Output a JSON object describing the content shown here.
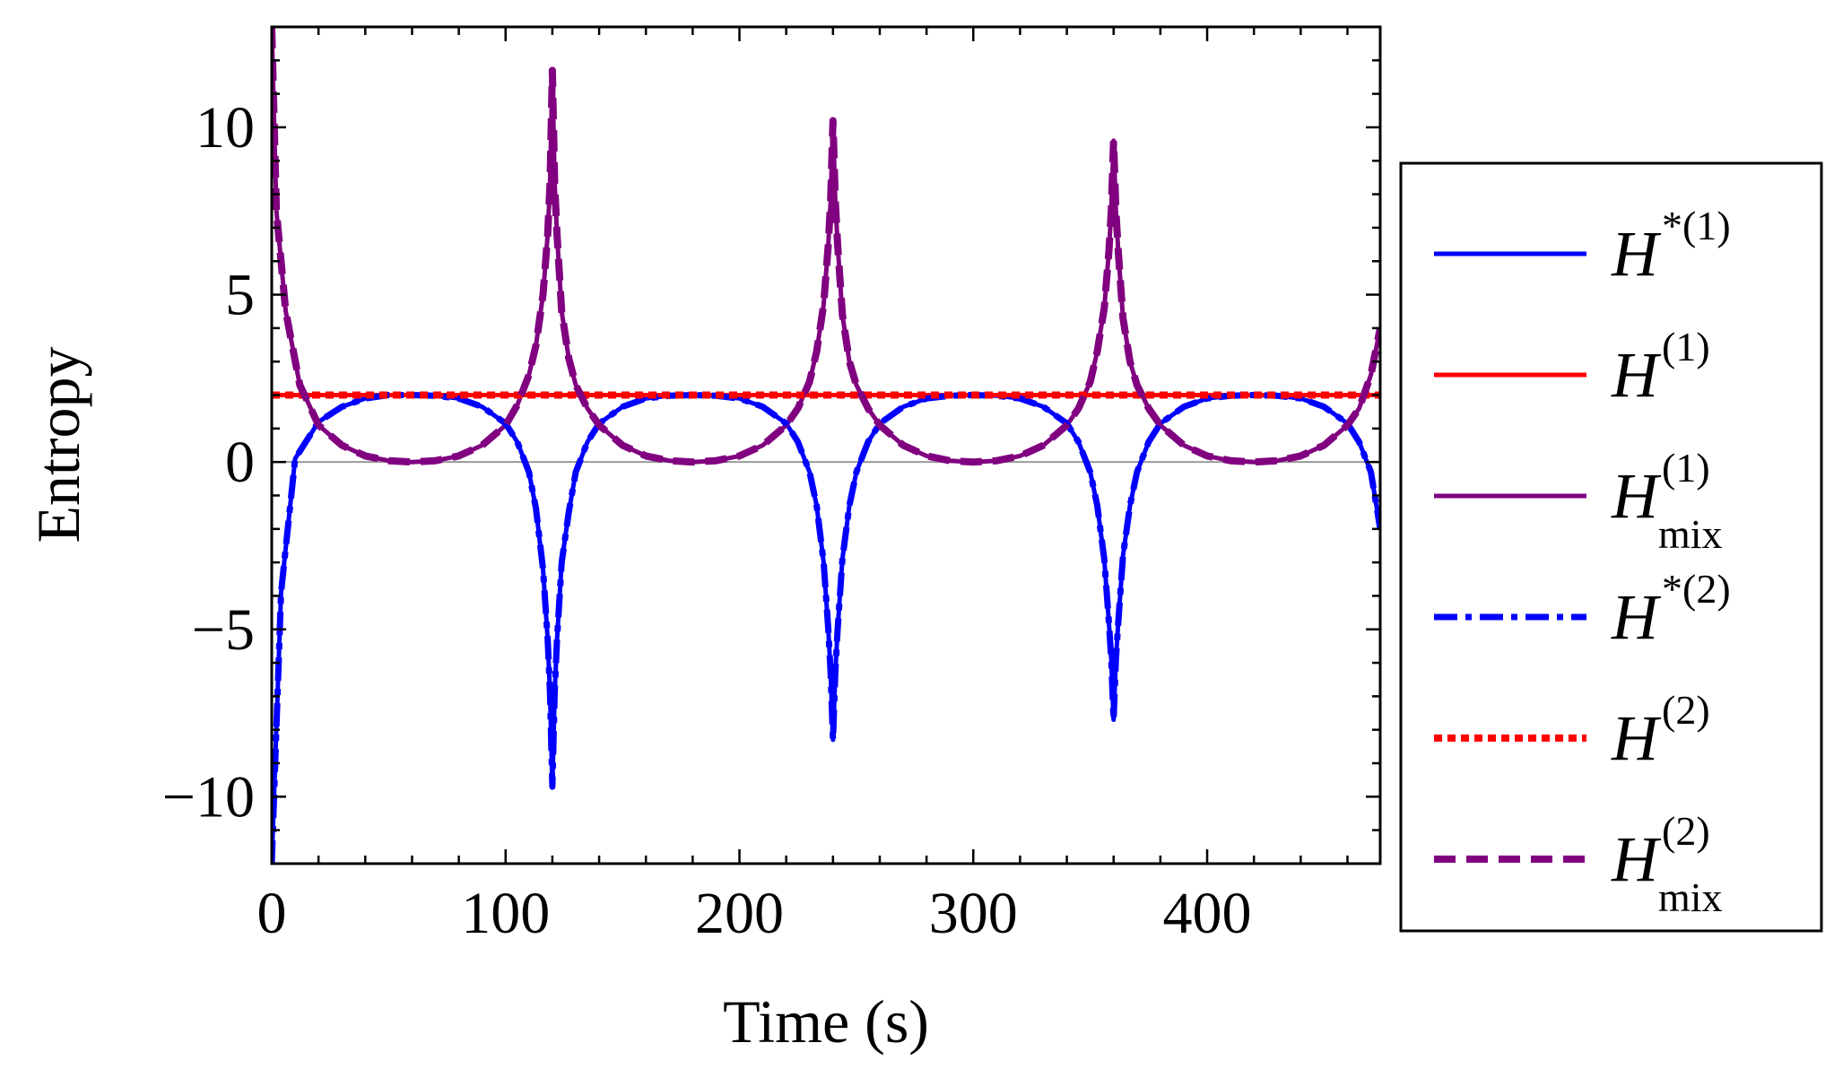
{
  "chart_data": {
    "type": "line",
    "title": "",
    "xlabel": "Time (s)",
    "ylabel": "Entropy",
    "xlim": [
      0,
      474
    ],
    "ylim": [
      -12,
      13
    ],
    "xticks": [
      0,
      100,
      200,
      300,
      400
    ],
    "yticks": [
      -10,
      -5,
      0,
      5,
      10
    ],
    "xtick_labels": [
      "0",
      "100",
      "200",
      "300",
      "400"
    ],
    "ytick_labels": [
      "−10",
      "−5",
      "0",
      "5",
      "10"
    ],
    "zero_line": true,
    "grid": false,
    "legend_position": "right",
    "series": [
      {
        "name": "H*(1)",
        "symbol": "H",
        "sup": "*(1)",
        "sub": "",
        "color": "#0000ff",
        "style": "solid",
        "x": [
          0,
          4,
          10,
          20,
          30,
          40,
          50,
          60,
          70,
          80,
          90,
          100,
          105,
          110,
          113,
          116,
          118,
          119,
          120,
          121,
          122,
          124,
          127,
          130,
          135,
          140,
          150,
          160,
          170,
          180,
          190,
          200,
          210,
          220,
          225,
          230,
          233,
          236,
          238,
          239,
          240,
          241,
          242,
          244,
          247,
          250,
          255,
          260,
          270,
          280,
          290,
          300,
          310,
          320,
          330,
          340,
          345,
          350,
          353,
          356,
          358,
          359,
          360,
          361,
          362,
          364,
          367,
          370,
          375,
          380,
          390,
          400,
          410,
          420,
          430,
          440,
          450,
          460,
          465,
          470,
          474
        ],
        "y": [
          -12,
          -3.9,
          0.1,
          1.2,
          1.65,
          1.9,
          2.0,
          2.0,
          1.98,
          1.9,
          1.65,
          1.15,
          0.6,
          -0.3,
          -1.4,
          -3.2,
          -5.3,
          -6.9,
          -9.7,
          -6.9,
          -5.3,
          -3.0,
          -1.5,
          -0.3,
          0.6,
          1.15,
          1.65,
          1.9,
          1.98,
          2.0,
          1.98,
          1.9,
          1.65,
          1.15,
          0.6,
          -0.3,
          -1.3,
          -3.0,
          -5.0,
          -6.3,
          -8.3,
          -6.3,
          -5.0,
          -2.9,
          -1.3,
          -0.3,
          0.6,
          1.15,
          1.65,
          1.9,
          1.98,
          2.0,
          1.98,
          1.9,
          1.65,
          1.15,
          0.6,
          -0.3,
          -1.3,
          -2.9,
          -4.8,
          -5.9,
          -7.7,
          -5.9,
          -4.8,
          -2.8,
          -1.3,
          -0.3,
          0.6,
          1.15,
          1.65,
          1.9,
          1.98,
          2.0,
          1.98,
          1.9,
          1.65,
          1.15,
          0.6,
          -0.3,
          -2.0
        ]
      },
      {
        "name": "H(1)",
        "symbol": "H",
        "sup": "(1)",
        "sub": "",
        "color": "#ff0000",
        "style": "solid",
        "x": [
          0,
          474
        ],
        "y": [
          2.0,
          2.0
        ]
      },
      {
        "name": "H(1) mix",
        "symbol": "H",
        "sup": "(1)",
        "sub": "mix",
        "color": "#800080",
        "style": "solid",
        "x": [
          0,
          2,
          6,
          12,
          20,
          30,
          40,
          50,
          60,
          70,
          80,
          90,
          100,
          105,
          110,
          113,
          116,
          118,
          119,
          120,
          121,
          122,
          124,
          127,
          130,
          135,
          140,
          150,
          160,
          170,
          180,
          190,
          200,
          210,
          220,
          225,
          230,
          233,
          236,
          238,
          239,
          240,
          241,
          242,
          244,
          247,
          250,
          255,
          260,
          270,
          280,
          290,
          300,
          310,
          320,
          330,
          340,
          345,
          350,
          353,
          356,
          358,
          359,
          360,
          361,
          362,
          364,
          367,
          370,
          375,
          380,
          390,
          400,
          410,
          420,
          430,
          440,
          450,
          460,
          465,
          470,
          474
        ],
        "y": [
          13,
          7.5,
          4.5,
          2.3,
          1.1,
          0.5,
          0.18,
          0.04,
          0.0,
          0.04,
          0.18,
          0.5,
          1.1,
          1.7,
          2.6,
          3.5,
          5.0,
          6.8,
          8.3,
          11.7,
          8.3,
          6.8,
          4.5,
          3.1,
          2.3,
          1.6,
          1.1,
          0.5,
          0.18,
          0.04,
          0.0,
          0.04,
          0.18,
          0.5,
          1.1,
          1.6,
          2.4,
          3.3,
          4.7,
          6.5,
          7.8,
          10.2,
          7.8,
          6.5,
          4.4,
          3.0,
          2.3,
          1.6,
          1.1,
          0.5,
          0.18,
          0.04,
          0.0,
          0.04,
          0.18,
          0.5,
          1.1,
          1.6,
          2.4,
          3.3,
          4.6,
          6.3,
          7.5,
          9.6,
          7.5,
          6.3,
          4.3,
          3.0,
          2.3,
          1.6,
          1.1,
          0.5,
          0.18,
          0.04,
          0.0,
          0.04,
          0.18,
          0.5,
          1.1,
          1.6,
          2.6,
          4.0
        ]
      },
      {
        "name": "H*(2)",
        "symbol": "H",
        "sup": "*(2)",
        "sub": "",
        "color": "#0000ff",
        "style": "dashdot",
        "x": [
          0,
          4,
          10,
          20,
          30,
          40,
          50,
          60,
          70,
          80,
          90,
          100,
          105,
          110,
          113,
          116,
          118,
          119,
          120,
          121,
          122,
          124,
          127,
          130,
          135,
          140,
          150,
          160,
          170,
          180,
          190,
          200,
          210,
          220,
          225,
          230,
          233,
          236,
          238,
          239,
          240,
          241,
          242,
          244,
          247,
          250,
          255,
          260,
          270,
          280,
          290,
          300,
          310,
          320,
          330,
          340,
          345,
          350,
          353,
          356,
          358,
          359,
          360,
          361,
          362,
          364,
          367,
          370,
          375,
          380,
          390,
          400,
          410,
          420,
          430,
          440,
          450,
          460,
          465,
          470,
          474
        ],
        "y": [
          -12,
          -3.9,
          0.1,
          1.2,
          1.65,
          1.9,
          2.0,
          2.0,
          1.98,
          1.9,
          1.65,
          1.15,
          0.6,
          -0.3,
          -1.4,
          -3.2,
          -5.3,
          -6.9,
          -9.7,
          -6.9,
          -5.3,
          -3.0,
          -1.5,
          -0.3,
          0.6,
          1.15,
          1.65,
          1.9,
          1.98,
          2.0,
          1.98,
          1.9,
          1.65,
          1.15,
          0.6,
          -0.3,
          -1.3,
          -3.0,
          -5.0,
          -6.3,
          -8.3,
          -6.3,
          -5.0,
          -2.9,
          -1.3,
          -0.3,
          0.6,
          1.15,
          1.65,
          1.9,
          1.98,
          2.0,
          1.98,
          1.9,
          1.65,
          1.15,
          0.6,
          -0.3,
          -1.3,
          -2.9,
          -4.8,
          -5.9,
          -7.7,
          -5.9,
          -4.8,
          -2.8,
          -1.3,
          -0.3,
          0.6,
          1.15,
          1.65,
          1.9,
          1.98,
          2.0,
          1.98,
          1.9,
          1.65,
          1.15,
          0.6,
          -0.3,
          -2.0
        ]
      },
      {
        "name": "H(2)",
        "symbol": "H",
        "sup": "(2)",
        "sub": "",
        "color": "#ff0000",
        "style": "dotted",
        "x": [
          0,
          474
        ],
        "y": [
          2.0,
          2.0
        ]
      },
      {
        "name": "H(2) mix",
        "symbol": "H",
        "sup": "(2)",
        "sub": "mix",
        "color": "#800080",
        "style": "dashed",
        "x": [
          0,
          2,
          6,
          12,
          20,
          30,
          40,
          50,
          60,
          70,
          80,
          90,
          100,
          105,
          110,
          113,
          116,
          118,
          119,
          120,
          121,
          122,
          124,
          127,
          130,
          135,
          140,
          150,
          160,
          170,
          180,
          190,
          200,
          210,
          220,
          225,
          230,
          233,
          236,
          238,
          239,
          240,
          241,
          242,
          244,
          247,
          250,
          255,
          260,
          270,
          280,
          290,
          300,
          310,
          320,
          330,
          340,
          345,
          350,
          353,
          356,
          358,
          359,
          360,
          361,
          362,
          364,
          367,
          370,
          375,
          380,
          390,
          400,
          410,
          420,
          430,
          440,
          450,
          460,
          465,
          470,
          474
        ],
        "y": [
          13,
          7.5,
          4.5,
          2.3,
          1.1,
          0.5,
          0.18,
          0.04,
          0.0,
          0.04,
          0.18,
          0.5,
          1.1,
          1.7,
          2.6,
          3.5,
          5.0,
          6.8,
          8.3,
          11.7,
          8.3,
          6.8,
          4.5,
          3.1,
          2.3,
          1.6,
          1.1,
          0.5,
          0.18,
          0.04,
          0.0,
          0.04,
          0.18,
          0.5,
          1.1,
          1.6,
          2.4,
          3.3,
          4.7,
          6.5,
          7.8,
          10.2,
          7.8,
          6.5,
          4.4,
          3.0,
          2.3,
          1.6,
          1.1,
          0.5,
          0.18,
          0.04,
          0.0,
          0.04,
          0.18,
          0.5,
          1.1,
          1.6,
          2.4,
          3.3,
          4.6,
          6.3,
          7.5,
          9.6,
          7.5,
          6.3,
          4.3,
          3.0,
          2.3,
          1.6,
          1.1,
          0.5,
          0.18,
          0.04,
          0.0,
          0.04,
          0.18,
          0.5,
          1.1,
          1.6,
          2.6,
          4.0
        ]
      }
    ]
  }
}
